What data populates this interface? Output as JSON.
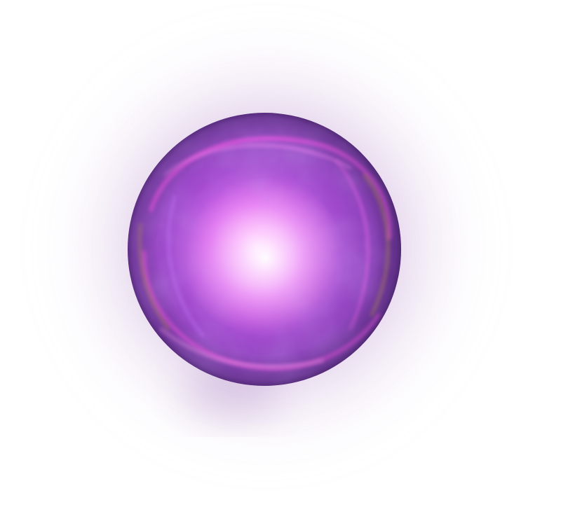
{
  "scene": {
    "subject_icon": "glowing-orb-icon",
    "colors": {
      "background": "#ffffff",
      "halo": "#7a3a9e",
      "sphere_edge": "#5e2f86",
      "sphere_mid": "#a54bd0",
      "sphere_inner": "#d96cf0",
      "core": "#fff0ff",
      "swirl_magenta": "#ff5cf0",
      "swirl_gold": "#d8b04a",
      "swirl_violet": "#c77dff"
    }
  }
}
